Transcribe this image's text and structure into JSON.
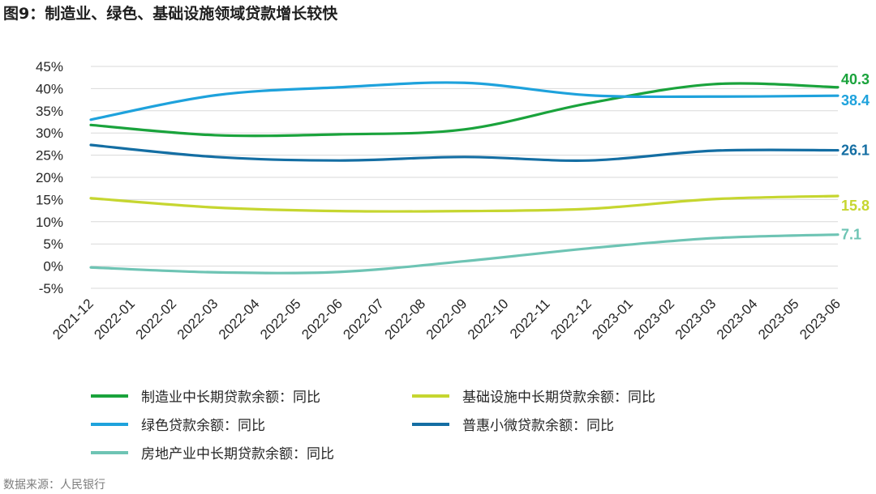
{
  "title": "图9：制造业、绿色、基础设施领域贷款增长较快",
  "source": "数据来源：人民银行",
  "chart_data": {
    "type": "line",
    "categories": [
      "2021-12",
      "2022-01",
      "2022-02",
      "2022-03",
      "2022-04",
      "2022-05",
      "2022-06",
      "2022-07",
      "2022-08",
      "2022-09",
      "2022-10",
      "2022-11",
      "2022-12",
      "2023-01",
      "2023-02",
      "2023-03",
      "2023-04",
      "2023-05",
      "2023-06"
    ],
    "ylim": [
      -5,
      45
    ],
    "yticks": [
      -5,
      0,
      5,
      10,
      15,
      20,
      25,
      30,
      35,
      40,
      45
    ],
    "ytick_labels": [
      "-5%",
      "0%",
      "5%",
      "10%",
      "15%",
      "20%",
      "25%",
      "30%",
      "35%",
      "40%",
      "45%"
    ],
    "grid": true,
    "legend_placement": "bottom",
    "series": [
      {
        "name": "制造业中长期贷款余额：同比",
        "color": "#1aa33c",
        "points": [
          [
            0,
            31.8
          ],
          [
            3,
            29.5
          ],
          [
            6,
            29.7
          ],
          [
            9,
            30.8
          ],
          [
            12,
            36.7
          ],
          [
            15,
            41.0
          ],
          [
            18,
            40.3
          ]
        ],
        "end_label": "40.3"
      },
      {
        "name": "基础设施中长期贷款余额：同比",
        "color": "#c6d630",
        "points": [
          [
            0,
            15.3
          ],
          [
            3,
            13.2
          ],
          [
            6,
            12.4
          ],
          [
            9,
            12.4
          ],
          [
            12,
            12.9
          ],
          [
            15,
            15.1
          ],
          [
            18,
            15.8
          ]
        ],
        "end_label": "15.8"
      },
      {
        "name": "绿色贷款余额：同比",
        "color": "#1ea2dc",
        "points": [
          [
            0,
            33.0
          ],
          [
            3,
            38.5
          ],
          [
            6,
            40.3
          ],
          [
            9,
            41.3
          ],
          [
            12,
            38.5
          ],
          [
            15,
            38.2
          ],
          [
            18,
            38.4
          ]
        ],
        "end_label": "38.4"
      },
      {
        "name": "普惠小微贷款余额：同比",
        "color": "#146ea3",
        "points": [
          [
            0,
            27.3
          ],
          [
            3,
            24.6
          ],
          [
            6,
            23.8
          ],
          [
            9,
            24.6
          ],
          [
            12,
            23.8
          ],
          [
            15,
            26.0
          ],
          [
            18,
            26.1
          ]
        ],
        "end_label": "26.1"
      },
      {
        "name": "房地产业中长期贷款余额：同比",
        "color": "#6ec4b4",
        "points": [
          [
            0,
            -0.3
          ],
          [
            3,
            -1.4
          ],
          [
            6,
            -1.3
          ],
          [
            9,
            1.1
          ],
          [
            12,
            4.0
          ],
          [
            15,
            6.3
          ],
          [
            18,
            7.1
          ]
        ],
        "end_label": "7.1"
      }
    ]
  }
}
